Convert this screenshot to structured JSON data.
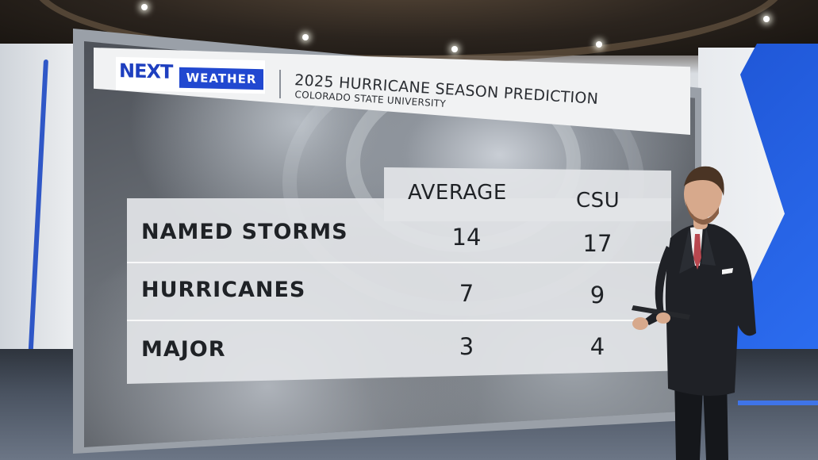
{
  "branding": {
    "logo_next": "NEXT",
    "logo_weather": "WEATHER"
  },
  "graphic": {
    "title": "2025 HURRICANE SEASON PREDICTION",
    "subtitle": "COLORADO STATE UNIVERSITY"
  },
  "table": {
    "columns": [
      "AVERAGE",
      "CSU"
    ],
    "rows": [
      {
        "label": "NAMED STORMS",
        "average": "14",
        "csu": "17"
      },
      {
        "label": "HURRICANES",
        "average": "7",
        "csu": "9"
      },
      {
        "label": "MAJOR",
        "average": "3",
        "csu": "4"
      }
    ]
  },
  "colors": {
    "brand_blue": "#2148d0",
    "studio_accent": "#2c6df0",
    "panel": "#e2e4e7"
  }
}
